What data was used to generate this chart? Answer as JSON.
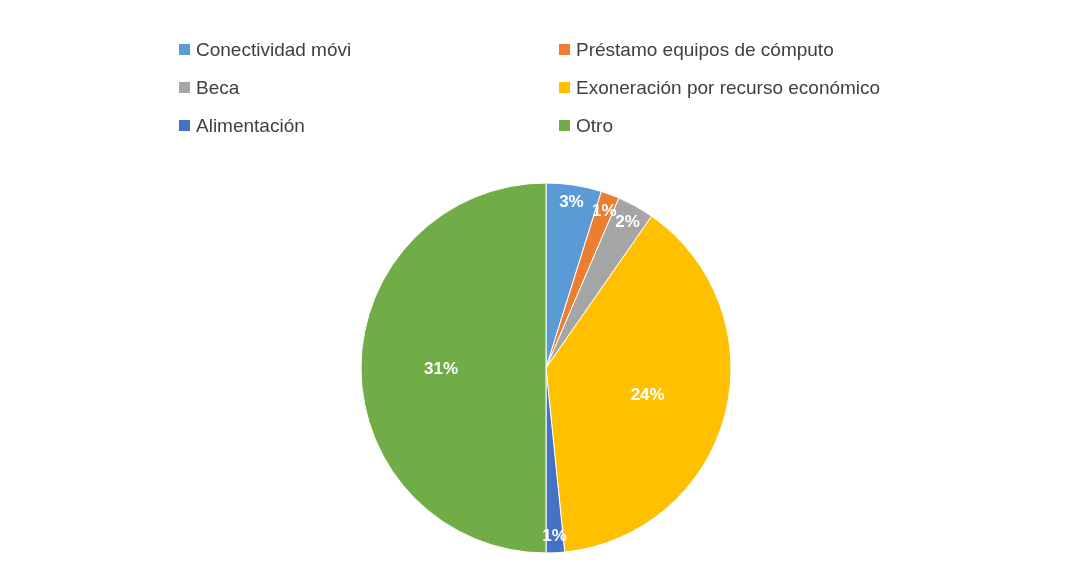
{
  "chart_data": {
    "type": "pie",
    "categories": [
      "Conectividad móvi",
      "Préstamo equipos de cómputo",
      "Beca",
      "Exoneración por recurso económico",
      "Alimentación",
      "Otro"
    ],
    "values": [
      3,
      1,
      2,
      24,
      1,
      31
    ],
    "colors": [
      "#5b9bd5",
      "#ed7d31",
      "#a5a5a5",
      "#ffc000",
      "#4472c4",
      "#70ad47"
    ],
    "value_labels": [
      "3%",
      "1%",
      "2%",
      "24%",
      "1%",
      "31%"
    ],
    "legend": "top"
  }
}
